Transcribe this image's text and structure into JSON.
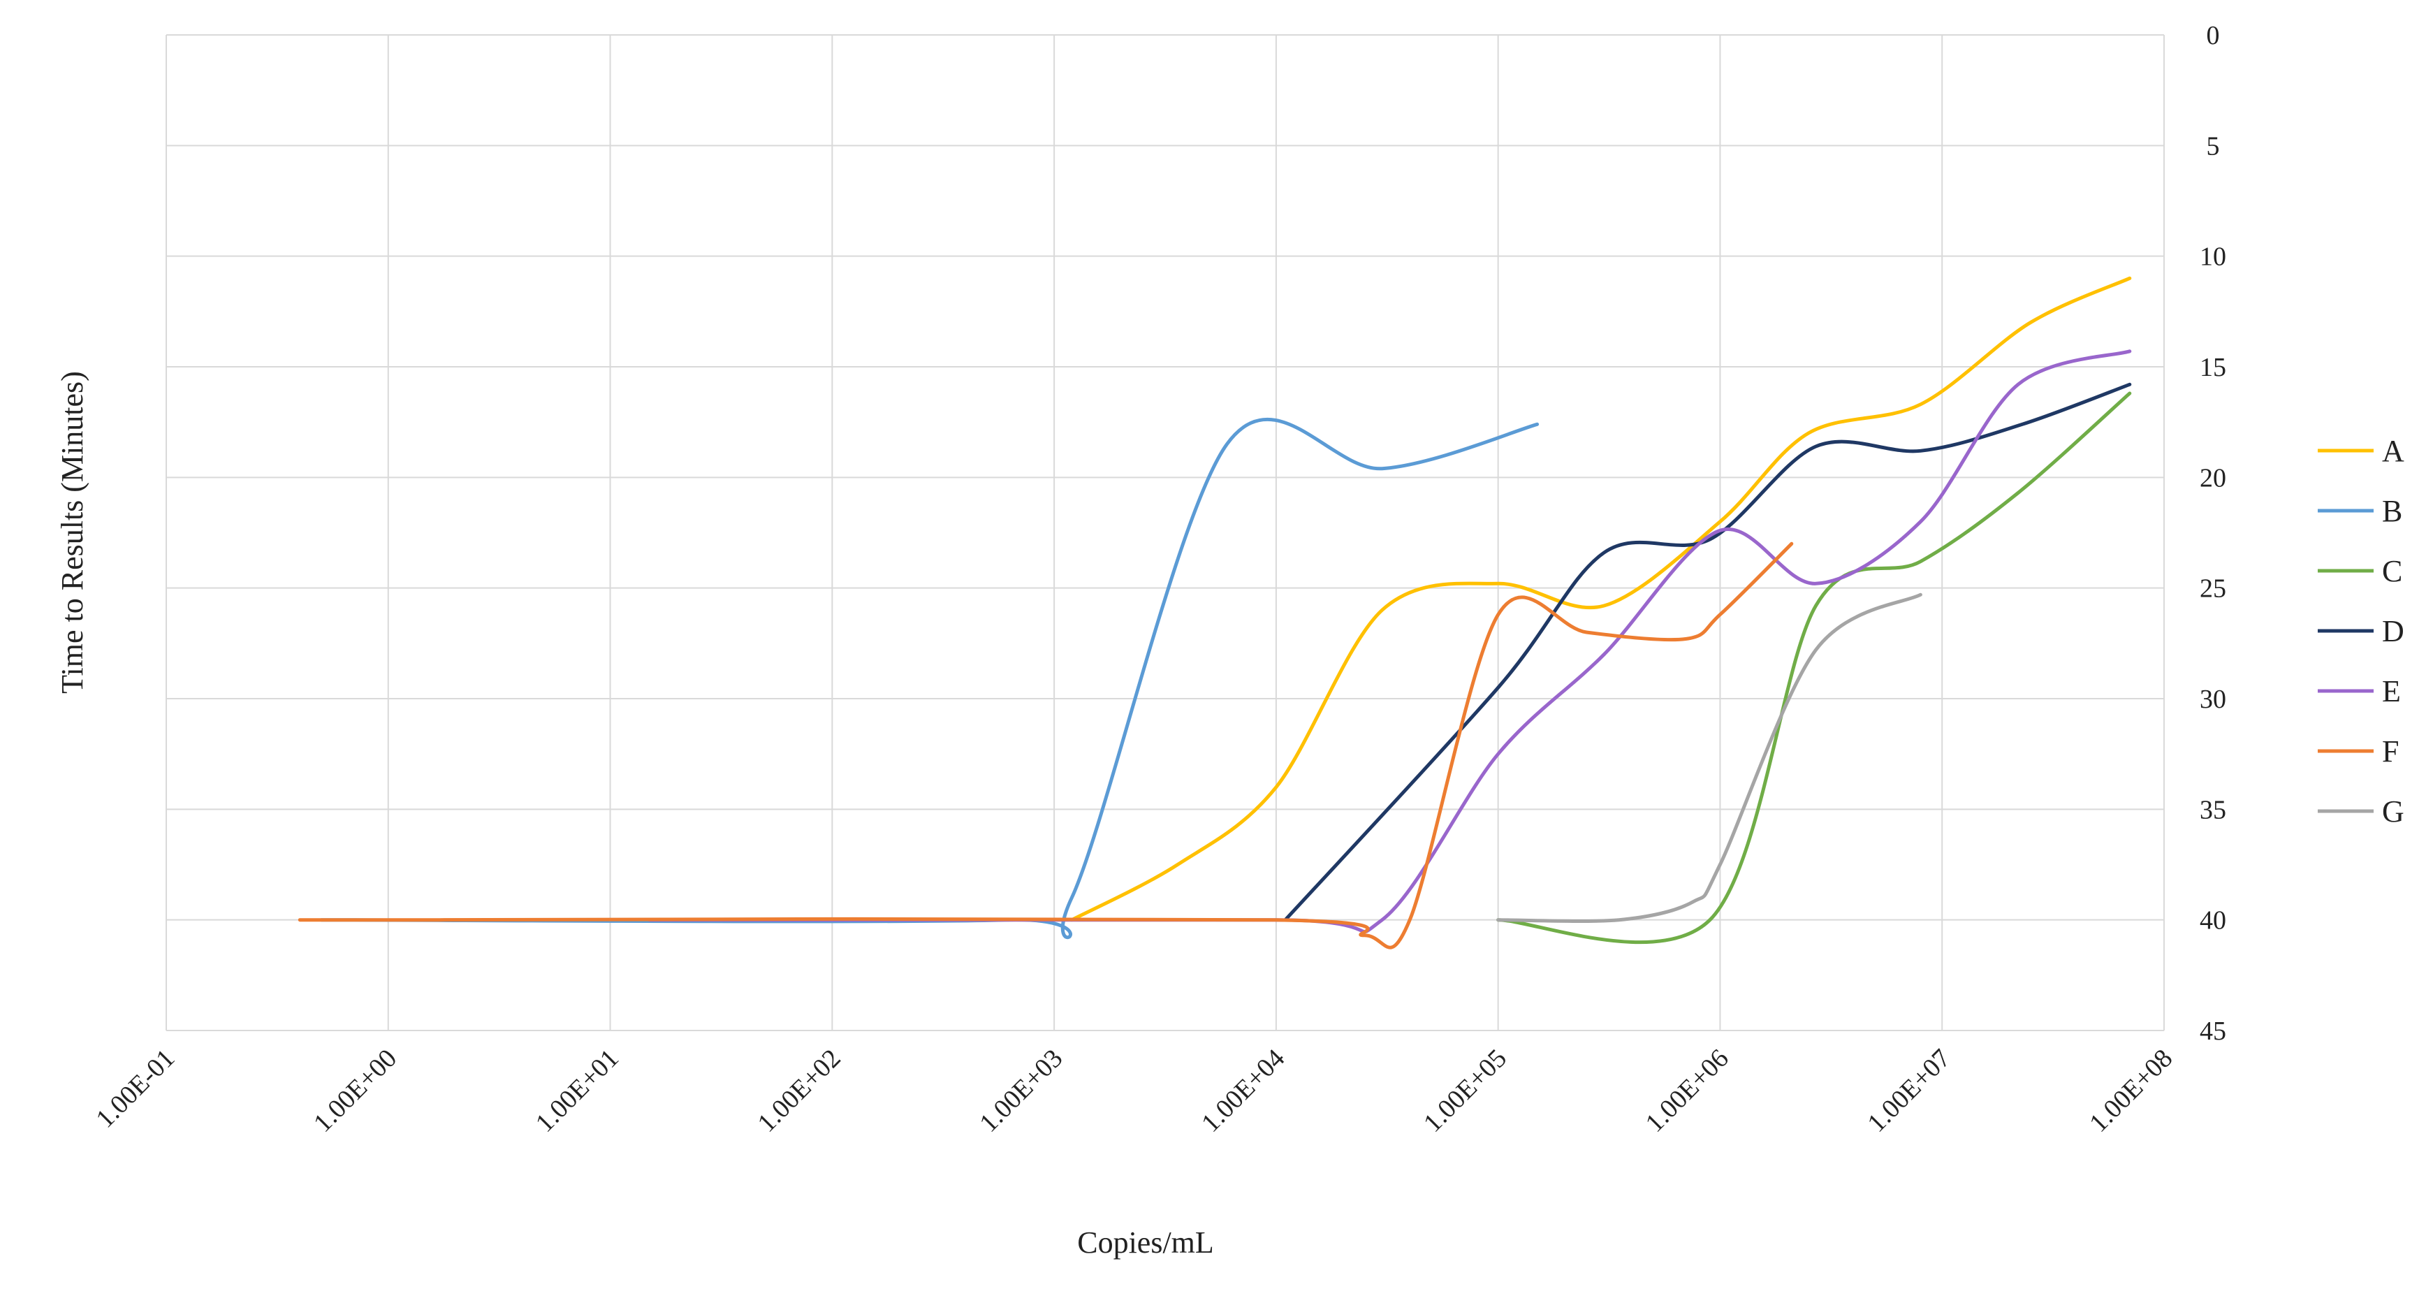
{
  "chart_data": {
    "type": "line",
    "title": "",
    "xlabel": "Copies/mL",
    "ylabel": "Time to Results (Minutes)",
    "x_scale": "log10",
    "xlim": [
      0.1,
      100000000
    ],
    "x_tick_labels": [
      "1.00E-01",
      "1.00E+00",
      "1.00E+01",
      "1.00E+02",
      "1.00E+03",
      "1.00E+04",
      "1.00E+05",
      "1.00E+06",
      "1.00E+07",
      "1.00E+08"
    ],
    "ylim": [
      0,
      45
    ],
    "y_reversed": true,
    "y_axis_side": "right",
    "y_tick_labels": [
      "0",
      "5",
      "10",
      "15",
      "20",
      "25",
      "30",
      "35",
      "40",
      "45"
    ],
    "grid": true,
    "legend_position": "right",
    "smooth_lines": true,
    "series": [
      {
        "name": "A",
        "color": "#FFC000",
        "x": [
          1200,
          3600,
          10000,
          30000,
          100000,
          300000,
          1000000,
          2500000,
          8000000,
          25000000,
          70000000
        ],
        "y": [
          40,
          37.5,
          34,
          26,
          24.8,
          25.8,
          22,
          18,
          16.7,
          13,
          11
        ]
      },
      {
        "name": "B",
        "color": "#5B9BD5",
        "x": [
          0.5,
          600,
          1200,
          6000,
          30000,
          150000
        ],
        "y": [
          40,
          40,
          39,
          18.5,
          19.6,
          17.6
        ]
      },
      {
        "name": "C",
        "color": "#70AD47",
        "x": [
          100000,
          900000,
          2700000,
          8000000,
          22000000,
          70000000
        ],
        "y": [
          40,
          40,
          25.8,
          23.8,
          20.7,
          16.2
        ]
      },
      {
        "name": "D",
        "color": "#1F3864",
        "x": [
          11000,
          100000,
          300000,
          900000,
          2700000,
          8000000,
          23000000,
          70000000
        ],
        "y": [
          40,
          29.5,
          23.4,
          22.8,
          18.6,
          18.8,
          17.6,
          15.8
        ]
      },
      {
        "name": "E",
        "color": "#9966CC",
        "x": [
          15,
          10000,
          30000,
          100000,
          300000,
          1000000,
          2700000,
          8000000,
          22000000,
          70000000
        ],
        "y": [
          40,
          40,
          40,
          32.5,
          28,
          22.4,
          24.8,
          22,
          15.8,
          14.3
        ]
      },
      {
        "name": "F",
        "color": "#ED7D31",
        "x": [
          0.4,
          1.7,
          10000,
          25000,
          40000,
          100000,
          250000,
          700000,
          1000000,
          2100000
        ],
        "y": [
          40,
          40,
          40,
          40.7,
          40,
          26.2,
          27,
          27.3,
          26.2,
          23
        ]
      },
      {
        "name": "G",
        "color": "#A5A5A5",
        "x": [
          100000,
          350000,
          750000,
          1000000,
          2700000,
          8000000
        ],
        "y": [
          40,
          40,
          39.2,
          37.5,
          27.8,
          25.3
        ]
      }
    ]
  }
}
